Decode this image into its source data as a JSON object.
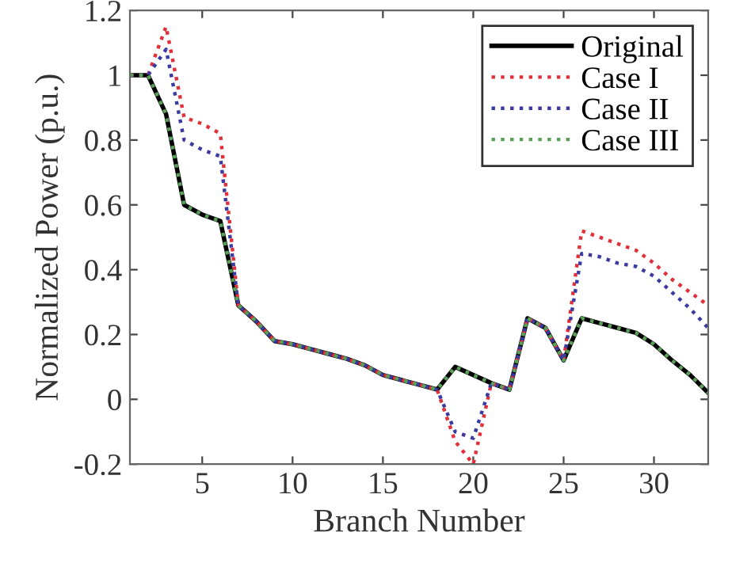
{
  "chart_data": {
    "type": "line",
    "xlabel": "Branch Number",
    "ylabel": "Normalized Power (p.u.)",
    "x": [
      1,
      2,
      3,
      4,
      5,
      6,
      7,
      8,
      9,
      10,
      11,
      12,
      13,
      14,
      15,
      16,
      17,
      18,
      19,
      20,
      21,
      22,
      23,
      24,
      25,
      26,
      27,
      28,
      29,
      30,
      31,
      32,
      33
    ],
    "series": [
      {
        "name": "Original",
        "color": "#000000",
        "line_style": "solid",
        "values": [
          1.0,
          1.0,
          0.88,
          0.6,
          0.57,
          0.55,
          0.29,
          0.24,
          0.18,
          0.17,
          0.155,
          0.14,
          0.125,
          0.105,
          0.075,
          0.06,
          0.045,
          0.03,
          0.1,
          0.075,
          0.05,
          0.03,
          0.25,
          0.22,
          0.12,
          0.25,
          0.235,
          0.22,
          0.205,
          0.17,
          0.12,
          0.075,
          0.02
        ]
      },
      {
        "name": "Case I",
        "color": "#e0303a",
        "line_style": "dotted",
        "values": [
          1.0,
          1.0,
          1.15,
          0.87,
          0.85,
          0.82,
          0.29,
          0.24,
          0.18,
          0.17,
          0.155,
          0.14,
          0.125,
          0.105,
          0.075,
          0.06,
          0.045,
          0.03,
          -0.13,
          -0.2,
          0.05,
          0.03,
          0.25,
          0.22,
          0.12,
          0.52,
          0.5,
          0.48,
          0.46,
          0.42,
          0.37,
          0.33,
          0.29
        ]
      },
      {
        "name": "Case II",
        "color": "#3a3aa0",
        "line_style": "dotted",
        "values": [
          1.0,
          1.0,
          1.08,
          0.8,
          0.77,
          0.75,
          0.29,
          0.24,
          0.18,
          0.17,
          0.155,
          0.14,
          0.125,
          0.105,
          0.075,
          0.06,
          0.045,
          0.03,
          -0.1,
          -0.12,
          0.05,
          0.03,
          0.25,
          0.22,
          0.12,
          0.45,
          0.44,
          0.42,
          0.41,
          0.38,
          0.33,
          0.28,
          0.22
        ]
      },
      {
        "name": "Case III",
        "color": "#5aa05a",
        "line_style": "dotted",
        "values": [
          1.0,
          1.0,
          0.88,
          0.6,
          0.57,
          0.55,
          0.29,
          0.24,
          0.18,
          0.17,
          0.155,
          0.14,
          0.125,
          0.105,
          0.075,
          0.06,
          0.045,
          0.03,
          0.1,
          0.075,
          0.05,
          0.03,
          0.25,
          0.22,
          0.12,
          0.25,
          0.235,
          0.22,
          0.205,
          0.17,
          0.12,
          0.075,
          0.02
        ]
      }
    ],
    "xlim": [
      1,
      33
    ],
    "ylim": [
      -0.2,
      1.2
    ],
    "xticks": [
      5,
      10,
      15,
      20,
      25,
      30
    ],
    "yticks": [
      -0.2,
      0,
      0.2,
      0.4,
      0.6,
      0.8,
      1,
      1.2
    ],
    "grid": false,
    "legend": "top right",
    "marker": "none"
  }
}
